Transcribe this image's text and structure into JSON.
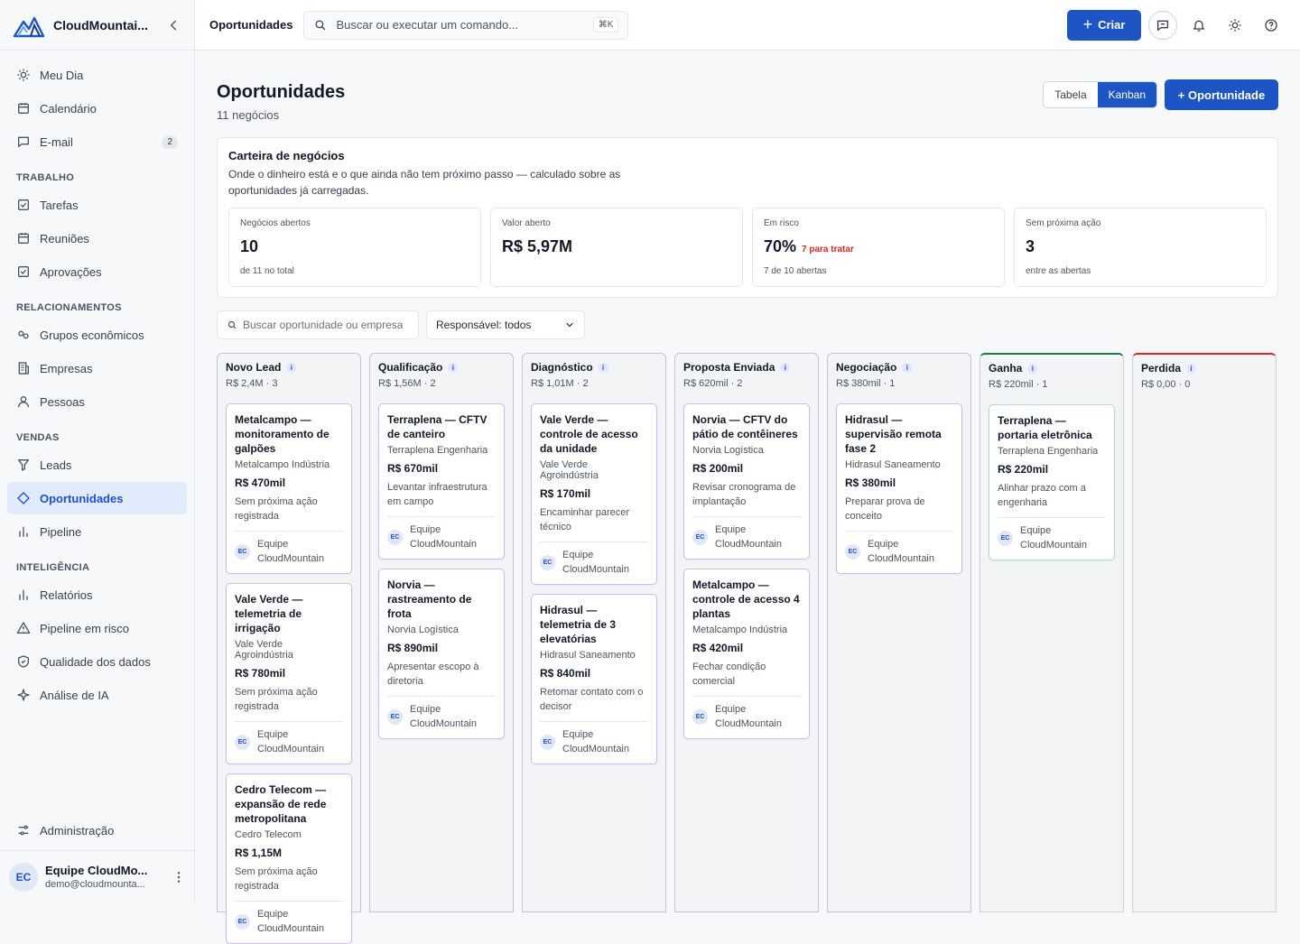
{
  "app": {
    "name": "CloudMountai...",
    "brand_color": "#1d56c4"
  },
  "sidebar": {
    "top": [
      {
        "label": "Meu Dia",
        "icon": "sun-icon"
      },
      {
        "label": "Calendário",
        "icon": "calendar-icon"
      },
      {
        "label": "E-mail",
        "icon": "message-icon",
        "count": "2"
      }
    ],
    "sections": [
      {
        "title": "TRABALHO",
        "items": [
          {
            "label": "Tarefas",
            "icon": "check-square-icon"
          },
          {
            "label": "Reuniões",
            "icon": "calendar-icon"
          },
          {
            "label": "Aprovações",
            "icon": "check-square-icon"
          }
        ]
      },
      {
        "title": "RELACIONAMENTOS",
        "items": [
          {
            "label": "Grupos econômicos",
            "icon": "link-icon"
          },
          {
            "label": "Empresas",
            "icon": "building-icon"
          },
          {
            "label": "Pessoas",
            "icon": "user-icon"
          }
        ]
      },
      {
        "title": "VENDAS",
        "items": [
          {
            "label": "Leads",
            "icon": "filter-icon"
          },
          {
            "label": "Oportunidades",
            "icon": "diamond-icon",
            "active": true
          },
          {
            "label": "Pipeline",
            "icon": "bar-chart-icon"
          }
        ]
      },
      {
        "title": "INTELIGÊNCIA",
        "items": [
          {
            "label": "Relatórios",
            "icon": "bar-chart-icon"
          },
          {
            "label": "Pipeline em risco",
            "icon": "warning-icon"
          },
          {
            "label": "Qualidade dos dados",
            "icon": "shield-check-icon"
          },
          {
            "label": "Análise de IA",
            "icon": "sparkle-icon"
          }
        ]
      }
    ],
    "admin": {
      "label": "Administração",
      "icon": "sliders-icon"
    },
    "user": {
      "initials": "EC",
      "name": "Equipe CloudMo...",
      "email": "demo@cloudmounta..."
    }
  },
  "topbar": {
    "title": "Oportunidades",
    "search_placeholder": "Buscar ou executar um comando...",
    "search_shortcut": "⌘K",
    "create_label": "Criar"
  },
  "page": {
    "title": "Oportunidades",
    "subtitle": "11 negócios",
    "view_table": "Tabela",
    "view_kanban": "Kanban",
    "new_button": "+ Oportunidade"
  },
  "wallet": {
    "title": "Carteira de negócios",
    "description": "Onde o dinheiro está e o que ainda não tem próximo passo — calculado sobre as oportunidades já carregadas.",
    "kpis": [
      {
        "label": "Negócios abertos",
        "value": "10",
        "extra": "",
        "hint": "de 11 no total"
      },
      {
        "label": "Valor aberto",
        "value": "R$ 5,97M",
        "extra": "",
        "hint": ""
      },
      {
        "label": "Em risco",
        "value": "70%",
        "extra": "7 para tratar",
        "hint": "7 de 10 abertas"
      },
      {
        "label": "Sem próxima ação",
        "value": "3",
        "extra": "",
        "hint": "entre as abertas"
      }
    ]
  },
  "filters": {
    "search_placeholder": "Buscar oportunidade ou empresa",
    "owner_select": "Responsável: todos"
  },
  "owner": {
    "initials": "EC",
    "name": "Equipe CloudMountain"
  },
  "columns": [
    {
      "name": "Novo Lead",
      "summary": "R$ 2,4M · 3",
      "kind": "open",
      "cards": [
        {
          "title": "Metalcampo — monitoramento de galpões",
          "company": "Metalcampo Indústria",
          "value": "R$ 470mil",
          "next": "Sem próxima ação registrada"
        },
        {
          "title": "Vale Verde — telemetria de irrigação",
          "company": "Vale Verde Agroindústria",
          "value": "R$ 780mil",
          "next": "Sem próxima ação registrada"
        },
        {
          "title": "Cedro Telecom — expansão de rede metropolitana",
          "company": "Cedro Telecom",
          "value": "R$ 1,15M",
          "next": "Sem próxima ação registrada"
        }
      ]
    },
    {
      "name": "Qualificação",
      "summary": "R$ 1,56M · 2",
      "kind": "open",
      "cards": [
        {
          "title": "Terraplena — CFTV de canteiro",
          "company": "Terraplena Engenharia",
          "value": "R$ 670mil",
          "next": "Levantar infraestrutura em campo"
        },
        {
          "title": "Norvia — rastreamento de frota",
          "company": "Norvia Logística",
          "value": "R$ 890mil",
          "next": "Apresentar escopo à diretoria"
        }
      ]
    },
    {
      "name": "Diagnóstico",
      "summary": "R$ 1,01M · 2",
      "kind": "open",
      "cards": [
        {
          "title": "Vale Verde — controle de acesso da unidade",
          "company": "Vale Verde Agroindústria",
          "value": "R$ 170mil",
          "next": "Encaminhar parecer técnico"
        },
        {
          "title": "Hidrasul — telemetria de 3 elevatórias",
          "company": "Hidrasul Saneamento",
          "value": "R$ 840mil",
          "next": "Retomar contato com o decisor"
        }
      ]
    },
    {
      "name": "Proposta Enviada",
      "summary": "R$ 620mil · 2",
      "kind": "open",
      "cards": [
        {
          "title": "Norvia — CFTV do pátio de contêineres",
          "company": "Norvia Logística",
          "value": "R$ 200mil",
          "next": "Revisar cronograma de implantação"
        },
        {
          "title": "Metalcampo — controle de acesso 4 plantas",
          "company": "Metalcampo Indústria",
          "value": "R$ 420mil",
          "next": "Fechar condição comercial"
        }
      ]
    },
    {
      "name": "Negociação",
      "summary": "R$ 380mil · 1",
      "kind": "open",
      "cards": [
        {
          "title": "Hidrasul — supervisão remota fase 2",
          "company": "Hidrasul Saneamento",
          "value": "R$ 380mil",
          "next": "Preparar prova de conceito"
        }
      ]
    },
    {
      "name": "Ganha",
      "summary": "R$ 220mil · 1",
      "kind": "won",
      "cards": [
        {
          "title": "Terraplena — portaria eletrônica",
          "company": "Terraplena Engenharia",
          "value": "R$ 220mil",
          "next": "Alinhar prazo com a engenharia"
        }
      ]
    },
    {
      "name": "Perdida",
      "summary": "R$ 0,00 · 0",
      "kind": "lost",
      "cards": []
    }
  ]
}
